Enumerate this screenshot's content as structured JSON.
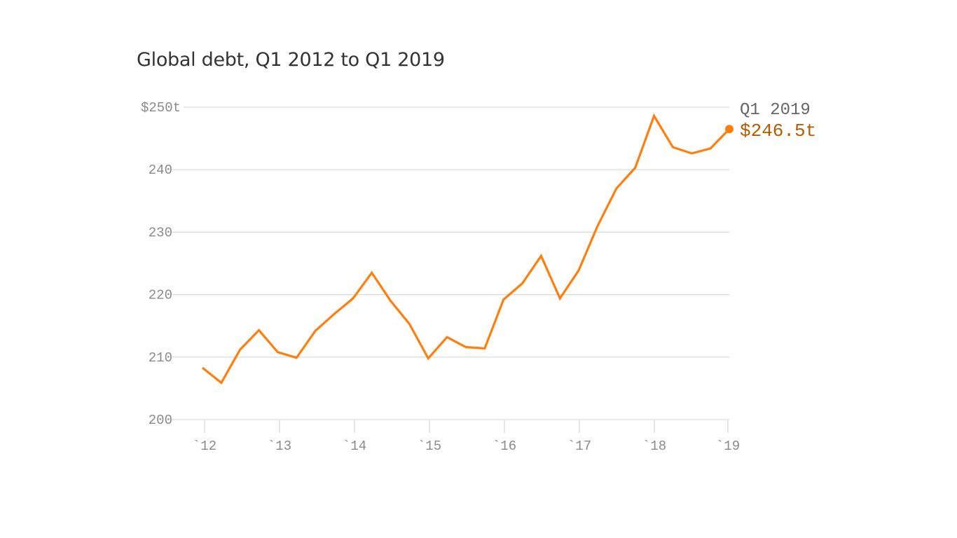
{
  "chart_data": {
    "type": "line",
    "title": "Global debt, Q1 2012 to Q1 2019",
    "xlabel": "",
    "ylabel": "",
    "ylim": [
      200,
      250
    ],
    "grid": true,
    "y_ticks": [
      "$250t",
      "240",
      "230",
      "220",
      "210",
      "200"
    ],
    "y_tick_values": [
      250,
      240,
      230,
      220,
      210,
      200
    ],
    "x_ticks": [
      "`12",
      "`13",
      "`14",
      "`15",
      "`16",
      "`17",
      "`18",
      "`19"
    ],
    "series": [
      {
        "name": "Global debt ($ trillions)",
        "color": "#ff7f0e",
        "x": [
          "Q1 2012",
          "Q2 2012",
          "Q3 2012",
          "Q4 2012",
          "Q1 2013",
          "Q2 2013",
          "Q3 2013",
          "Q4 2013",
          "Q1 2014",
          "Q2 2014",
          "Q3 2014",
          "Q4 2014",
          "Q1 2015",
          "Q2 2015",
          "Q3 2015",
          "Q4 2015",
          "Q1 2016",
          "Q2 2016",
          "Q3 2016",
          "Q4 2016",
          "Q1 2017",
          "Q2 2017",
          "Q3 2017",
          "Q4 2017",
          "Q1 2018",
          "Q2 2018",
          "Q3 2018",
          "Q4 2018",
          "Q1 2019"
        ],
        "values": [
          208.3,
          205.9,
          211.2,
          214.3,
          210.8,
          209.9,
          214.2,
          216.9,
          219.4,
          223.5,
          219.0,
          215.3,
          209.8,
          213.2,
          211.6,
          211.4,
          219.2,
          221.8,
          226.2,
          219.4,
          223.9,
          231.0,
          237.0,
          240.3,
          248.6,
          243.6,
          242.6,
          243.4,
          246.5
        ]
      }
    ],
    "annotation": {
      "label": "Q1 2019",
      "value": "$246.5t"
    }
  }
}
